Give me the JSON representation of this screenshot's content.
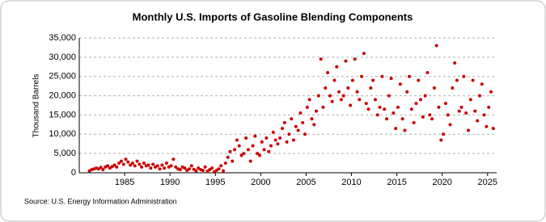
{
  "chart_data": {
    "type": "scatter",
    "title": "Monthly U.S. Imports of Gasoline Blending Components",
    "y_label": "Thousand Barrels",
    "source": "Source: U.S. Energy Information Administration",
    "color": "#cc0000",
    "grid": true,
    "xlim": [
      1980,
      2026
    ],
    "ylim": [
      0,
      35000
    ],
    "xticks": [
      1985,
      1990,
      1995,
      2000,
      2005,
      2010,
      2015,
      2020,
      2025
    ],
    "yticks": [
      0,
      {
        "value": 5000,
        "label": "5,000"
      },
      {
        "value": 10000,
        "label": "10,000"
      },
      {
        "value": 15000,
        "label": "15,000"
      },
      {
        "value": 20000,
        "label": "20,000"
      },
      {
        "value": 25000,
        "label": "25,000"
      },
      {
        "value": 30000,
        "label": "30,000"
      },
      {
        "value": 35000,
        "label": "35,000"
      }
    ],
    "x": [
      1981.125,
      1981.375,
      1981.625,
      1981.875,
      1982.125,
      1982.375,
      1982.625,
      1982.875,
      1983.125,
      1983.375,
      1983.625,
      1983.875,
      1984.125,
      1984.375,
      1984.625,
      1984.875,
      1985.125,
      1985.375,
      1985.625,
      1985.875,
      1986.125,
      1986.375,
      1986.625,
      1986.875,
      1987.125,
      1987.375,
      1987.625,
      1987.875,
      1988.125,
      1988.375,
      1988.625,
      1988.875,
      1989.125,
      1989.375,
      1989.625,
      1989.875,
      1990.125,
      1990.375,
      1990.625,
      1990.875,
      1991.125,
      1991.375,
      1991.625,
      1991.875,
      1992.125,
      1992.375,
      1992.625,
      1992.875,
      1993.125,
      1993.375,
      1993.625,
      1993.875,
      1994.125,
      1994.375,
      1994.625,
      1994.875,
      1995.125,
      1995.375,
      1995.625,
      1995.875,
      1996.125,
      1996.375,
      1996.625,
      1996.875,
      1997.125,
      1997.375,
      1997.625,
      1997.875,
      1998.125,
      1998.375,
      1998.625,
      1998.875,
      1999.125,
      1999.375,
      1999.625,
      1999.875,
      2000.125,
      2000.375,
      2000.625,
      2000.875,
      2001.125,
      2001.375,
      2001.625,
      2001.875,
      2002.125,
      2002.375,
      2002.625,
      2002.875,
      2003.125,
      2003.375,
      2003.625,
      2003.875,
      2004.125,
      2004.375,
      2004.625,
      2004.875,
      2005.125,
      2005.375,
      2005.625,
      2005.875,
      2006.125,
      2006.375,
      2006.625,
      2006.875,
      2007.125,
      2007.375,
      2007.625,
      2007.875,
      2008.125,
      2008.375,
      2008.625,
      2008.875,
      2009.125,
      2009.375,
      2009.625,
      2009.875,
      2010.125,
      2010.375,
      2010.625,
      2010.875,
      2011.125,
      2011.375,
      2011.625,
      2011.875,
      2012.125,
      2012.375,
      2012.625,
      2012.875,
      2013.125,
      2013.375,
      2013.625,
      2013.875,
      2014.125,
      2014.375,
      2014.625,
      2014.875,
      2015.125,
      2015.375,
      2015.625,
      2015.875,
      2016.125,
      2016.375,
      2016.625,
      2016.875,
      2017.125,
      2017.375,
      2017.625,
      2017.875,
      2018.125,
      2018.375,
      2018.625,
      2018.875,
      2019.125,
      2019.375,
      2019.625,
      2019.875,
      2020.125,
      2020.375,
      2020.625,
      2020.875,
      2021.125,
      2021.375,
      2021.625,
      2021.875,
      2022.125,
      2022.375,
      2022.625,
      2022.875,
      2023.125,
      2023.375,
      2023.625,
      2023.875,
      2024.125,
      2024.375,
      2024.625,
      2024.875,
      2025.125,
      2025.375,
      2025.625
    ],
    "values": [
      500,
      800,
      1000,
      1200,
      1000,
      1400,
      800,
      1500,
      1800,
      1200,
      1600,
      2000,
      1500,
      2500,
      3000,
      2200,
      3500,
      2800,
      2000,
      2500,
      1800,
      3000,
      2200,
      1500,
      2500,
      1800,
      2000,
      1200,
      2200,
      1500,
      1800,
      1000,
      2000,
      1200,
      2500,
      1500,
      1800,
      3500,
      1500,
      1000,
      800,
      1500,
      1200,
      600,
      1000,
      1800,
      900,
      500,
      1200,
      800,
      600,
      1500,
      400,
      800,
      1200,
      200,
      600,
      1000,
      1800,
      500,
      2500,
      4000,
      5500,
      3000,
      6000,
      8500,
      7000,
      4500,
      5000,
      9000,
      6000,
      3000,
      7000,
      9500,
      5000,
      4500,
      8000,
      6000,
      9000,
      5500,
      7000,
      10500,
      8500,
      7500,
      9000,
      11500,
      13000,
      8000,
      10000,
      14000,
      8500,
      12000,
      11000,
      15500,
      13000,
      10000,
      17000,
      19000,
      14000,
      12500,
      16000,
      20000,
      29500,
      17000,
      22000,
      26000,
      20000,
      18500,
      24000,
      27500,
      21000,
      19000,
      20000,
      29000,
      22000,
      17500,
      24000,
      29500,
      21000,
      19000,
      25000,
      31000,
      18000,
      16500,
      22000,
      24000,
      19000,
      15000,
      17000,
      25000,
      16500,
      14000,
      20000,
      24500,
      15500,
      11500,
      17000,
      23000,
      14000,
      11000,
      21000,
      25000,
      16500,
      13000,
      18000,
      24000,
      19000,
      14500,
      20000,
      26000,
      15000,
      14000,
      22000,
      33000,
      17000,
      8500,
      10000,
      18000,
      15000,
      12500,
      22000,
      28500,
      24000,
      16000,
      17000,
      25000,
      15500,
      11000,
      19000,
      24000,
      16000,
      13500,
      20000,
      23000,
      15000,
      12000,
      17000,
      21000,
      11500
    ]
  }
}
